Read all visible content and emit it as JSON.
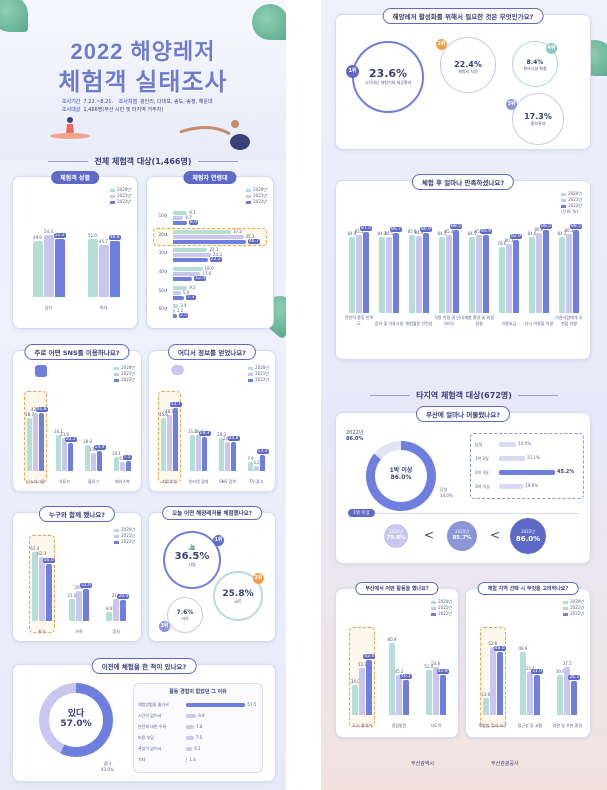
{
  "header": {
    "title_line1": "2022 해양레저",
    "title_line2": "체험객 실태조사",
    "period_label": "조사기간",
    "period_value": "7.22.~8.21.",
    "sites_label": "조사지점",
    "sites_value": "광안리, 다대포, 송도, 송정, 해운대",
    "target_label": "조사대상",
    "target_value": "1,466명(부산 시민 및 타지역 거주자)"
  },
  "sections": {
    "all_visitors": "전체 체험객 대상(1,466명)",
    "other_region": "타지역 체험객 대상(672명)"
  },
  "legend": {
    "y2020": "2020년",
    "y2021": "2021년",
    "y2022": "2022년",
    "unit": "(단위: %)"
  },
  "colors": {
    "y2020": "#b5ded9",
    "y2021": "#c9c7ef",
    "y2022": "#6f7fe0",
    "accent": "#5f6ac6",
    "highlight": "#f0a04a"
  },
  "gender": {
    "title": "체험객 성별",
    "chart_data": {
      "type": "bar",
      "categories": [
        "남자",
        "여자"
      ],
      "series": [
        {
          "name": "2020년",
          "values": [
            49.0,
            51.0
          ]
        },
        {
          "name": "2021년",
          "values": [
            54.3,
            45.7
          ]
        },
        {
          "name": "2022년",
          "values": [
            51.2,
            48.8
          ]
        }
      ]
    }
  },
  "age": {
    "title": "체험자 연령대",
    "chart_data": {
      "type": "bar",
      "categories": [
        "10대",
        "20대",
        "30대",
        "40대",
        "50대",
        "60대"
      ],
      "series": [
        {
          "name": "2020년",
          "values": [
            9.1,
            37.2,
            22.1,
            19.0,
            9.2,
            3.4
          ]
        },
        {
          "name": "2021년",
          "values": [
            6.7,
            45.2,
            24.3,
            17.6,
            5.0,
            1.2
          ]
        },
        {
          "name": "2022년",
          "values": [
            8.9,
            46.7,
            22.2,
            12.4,
            7.3,
            2.5
          ]
        }
      ]
    }
  },
  "sns": {
    "title": "주로 어떤 SNS를 이용하나요?",
    "chart_data": {
      "type": "bar",
      "categories": [
        "인스타그램",
        "유튜브",
        "블로그",
        "페이스북"
      ],
      "series": [
        {
          "name": "2020년",
          "values": [
            38.7,
            26.1,
            18.9,
            10.1
          ]
        },
        {
          "name": "2021년",
          "values": [
            42.0,
            23.8,
            13.2,
            6.2
          ]
        },
        {
          "name": "2022년",
          "values": [
            41.8,
            20.1,
            14.4,
            7.5
          ]
        }
      ]
    }
  },
  "info": {
    "title": "어디서 정보를 얻었나요?",
    "chart_data": {
      "type": "bar",
      "categories": [
        "지인추천",
        "인터넷 검색",
        "SNS 검색",
        "TV·광고"
      ],
      "series": [
        {
          "name": "2020년",
          "values": [
            45.6,
            31.2,
            28.3,
            7.9
          ]
        },
        {
          "name": "2021년",
          "values": [
            48.1,
            30.4,
            24.5,
            4.2
          ]
        },
        {
          "name": "2022년",
          "values": [
            53.7,
            29.3,
            24.8,
            13.3
          ]
        }
      ]
    }
  },
  "companion": {
    "title": "누구와 함께 했나요?",
    "chart_data": {
      "type": "bar",
      "categories": [
        "친구",
        "가족",
        "혼자"
      ],
      "series": [
        {
          "name": "2020년",
          "values": [
            67.4,
            21.0,
            8.8
          ]
        },
        {
          "name": "2021년",
          "values": [
            62.3,
            29.0,
            21.8
          ]
        },
        {
          "name": "2022년",
          "values": [
            56.0,
            31.6,
            20.4
          ]
        }
      ]
    }
  },
  "activity": {
    "title": "오늘 어떤 해양레저를 체험했나요?",
    "items": [
      {
        "rank": "1위",
        "value": "36.5%",
        "label": "서핑"
      },
      {
        "rank": "2위",
        "value": "25.8%",
        "label": "요트"
      },
      {
        "rank": "3위",
        "value": "7.6%",
        "label": "카약"
      }
    ]
  },
  "experience": {
    "title": "이전에 체험을 한 적이 있나요?",
    "yes_label": "있다",
    "yes_value": "57.0%",
    "no_label": "없다",
    "no_value": "43.0%",
    "reasons_title": "활동 경험이 없었던 그 이유",
    "reasons": [
      {
        "label": "체험방법을 몰라서",
        "value": "57.5"
      },
      {
        "label": "시간이 없어서",
        "value": "9.9"
      },
      {
        "label": "안전에 대한 우려",
        "value": "7.8"
      },
      {
        "label": "비용 부담",
        "value": "7.5"
      },
      {
        "label": "관심이 없어서",
        "value": "6.1"
      },
      {
        "label": "기타",
        "value": "1.4"
      }
    ]
  },
  "needs": {
    "title": "해양레저 활성화를 위해서 필요한 것은 무엇인가요?",
    "items": [
      {
        "rank": "1위",
        "value": "23.6%",
        "label": "시민대상 체험기회 제공확대"
      },
      {
        "rank": "2위",
        "value": "22.4%",
        "label": "체험비 지원"
      },
      {
        "rank": "3위",
        "value": "17.3%",
        "label": "홍보확대"
      },
      {
        "rank": "4위",
        "value": "8.4%",
        "label": "편의시설 확충"
      }
    ]
  },
  "satisfaction": {
    "title": "체험 후 얼마나 만족하셨나요?",
    "chart_data": {
      "type": "bar",
      "categories": [
        "전반적 종합 만족도",
        "장비 및 이용시설",
        "체험활동 안전성",
        "직원 친절 및 안내 서비스",
        "체험 환경 및 위생청결",
        "이용요금",
        "다시 이용할 의향",
        "다른사람에게 추천할 의향"
      ],
      "series": [
        {
          "name": "2020년",
          "values": [
            84.4,
            84.3,
            85.6,
            84.5,
            84.5,
            78.6,
            84.6,
            84.2
          ]
        },
        {
          "name": "2021년",
          "values": [
            85.5,
            84.5,
            84.9,
            85.4,
            85.7,
            80.3,
            86.6,
            86.3
          ]
        },
        {
          "name": "2022년",
          "values": [
            87.4,
            86.7,
            86.9,
            88.5,
            85.9,
            82.9,
            88.5,
            88.5
          ]
        }
      ]
    }
  },
  "stay": {
    "title": "부산에 얼마나 머물렀나요?",
    "year_label": "2022년",
    "year_value": "86.0%",
    "center_label": "1박 이상",
    "center_value": "86.0%",
    "day_label": "당일",
    "day_value": "14.0%",
    "breakdown": [
      {
        "label": "당일",
        "value": "14.0%"
      },
      {
        "label": "1박 2일",
        "value": "21.1%"
      },
      {
        "label": "2박 3일",
        "value": "45.2%"
      },
      {
        "label": "3박 이상",
        "value": "19.6%"
      }
    ],
    "trend_title": "1박 이상",
    "trend": [
      {
        "year": "2020년",
        "value": "79.8%"
      },
      {
        "year": "2021년",
        "value": "85.7%"
      },
      {
        "year": "2022년",
        "value": "86.0%"
      }
    ]
  },
  "busan_activity": {
    "title": "부산에서 어떤 활동을 했나요?",
    "chart_data": {
      "type": "bar",
      "categories": [
        "도시 즐기기",
        "맛집방문",
        "식도락"
      ],
      "series": [
        {
          "name": "2020년",
          "values": [
            34.0,
            80.9,
            51.0
          ]
        },
        {
          "name": "2021년",
          "values": [
            53.7,
            45.2,
            54.6
          ]
        },
        {
          "name": "2022년",
          "values": [
            62.0,
            40.1,
            45.8
          ]
        }
      ]
    }
  },
  "region_choice": {
    "title": "체험 지역 선택 시 무엇을 고려하나요?",
    "chart_data": {
      "type": "bar",
      "categories": [
        "체험한 장비 요구",
        "접근성 및 교통",
        "경관 및 주변 환경"
      ],
      "series": [
        {
          "name": "2020년",
          "values": [
            13.0,
            48.9,
            30.9
          ]
        },
        {
          "name": "2021년",
          "values": [
            52.6,
            33.4,
            37.5
          ]
        },
        {
          "name": "2022년",
          "values": [
            48.6,
            31.0,
            26.1
          ]
        }
      ]
    }
  },
  "footer": {
    "logo1": "부산광역시",
    "logo2": "부산관광공사"
  }
}
